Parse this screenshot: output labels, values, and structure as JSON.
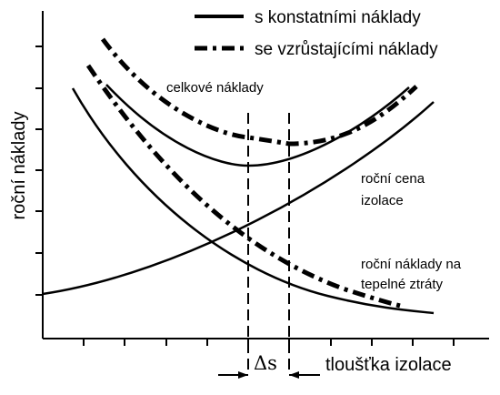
{
  "legend": {
    "constant": "s konstatními náklady",
    "rising": "se vzrůstajícími náklady"
  },
  "axes": {
    "y_label": "roční náklady",
    "x_label": "tloušťka izolace"
  },
  "curves": {
    "total": "celkové náklady",
    "insulation_line1": "roční cena",
    "insulation_line2": "izolace",
    "heatloss_line1": "roční náklady na",
    "heatloss_line2": "tepelné ztráty"
  },
  "delta_label": "Δs",
  "colors": {
    "ink": "#000000",
    "background": "#ffffff"
  }
}
